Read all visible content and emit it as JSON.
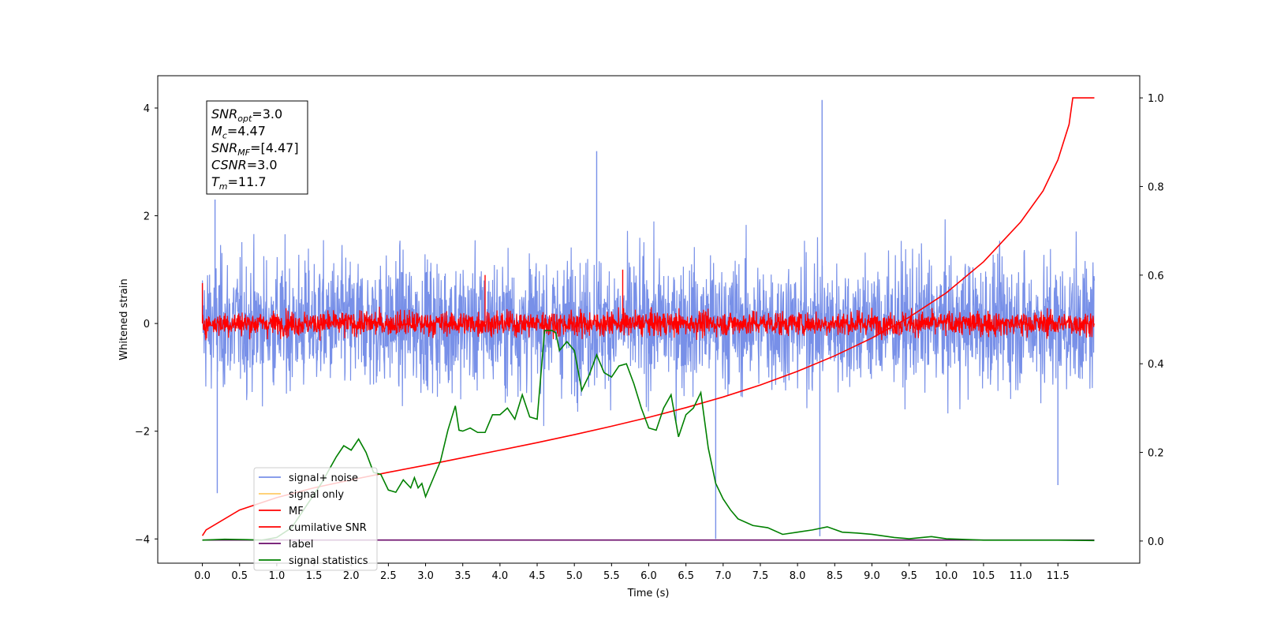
{
  "chart_data": {
    "type": "line",
    "xlabel": "Time (s)",
    "ylabel": "Whitened strain",
    "xlim": [
      -0.6,
      12.6
    ],
    "ylim_left": [
      -4.45,
      4.6
    ],
    "ylim_right": [
      -0.05,
      1.05
    ],
    "x_ticks": [
      "0.0",
      "0.5",
      "1.0",
      "1.5",
      "2.0",
      "2.5",
      "3.0",
      "3.5",
      "4.0",
      "4.5",
      "5.0",
      "5.5",
      "6.0",
      "6.5",
      "7.0",
      "7.5",
      "8.0",
      "8.5",
      "9.0",
      "9.5",
      "10.0",
      "10.5",
      "11.0",
      "11.5"
    ],
    "y_ticks_left": [
      "-4",
      "-2",
      "0",
      "2",
      "4"
    ],
    "y_ticks_right": [
      "0.0",
      "0.2",
      "0.4",
      "0.6",
      "0.8",
      "1.0"
    ],
    "grid": false,
    "legend_position": "lower-left",
    "annotation_box": [
      {
        "name": "SNR",
        "sub": "opt",
        "value": "=3.0"
      },
      {
        "name": "M",
        "sub": "c",
        "value": "=4.47"
      },
      {
        "name": "SNR",
        "sub": "MF",
        "value": "=[4.47]"
      },
      {
        "name": "CSNR",
        "sub": "",
        "value": "=3.0"
      },
      {
        "name": "T",
        "sub": "m",
        "value": "=11.7"
      }
    ],
    "series": [
      {
        "name": "signal+ noise",
        "axis": "left",
        "color": "#7890e8",
        "style": "noise",
        "envelope_range": [
          -1.9,
          2.0
        ],
        "x_range": [
          0.0,
          11.99
        ],
        "notable_spikes": [
          [
            0.17,
            2.3
          ],
          [
            0.2,
            -3.15
          ],
          [
            5.3,
            3.2
          ],
          [
            6.9,
            -4.0
          ],
          [
            8.33,
            4.15
          ],
          [
            8.3,
            -3.95
          ],
          [
            11.5,
            -3.0
          ]
        ]
      },
      {
        "name": "signal only",
        "axis": "left",
        "color": "#ffcc66",
        "style": "flat",
        "value": 0
      },
      {
        "name": "MF",
        "axis": "left",
        "color": "#ff0000",
        "style": "noise",
        "envelope_range": [
          -0.35,
          0.45
        ],
        "x_range": [
          0.0,
          11.99
        ],
        "notable_spikes": [
          [
            0.0,
            0.75
          ],
          [
            3.8,
            0.9
          ],
          [
            5.65,
            1.0
          ]
        ]
      },
      {
        "name": "cumilative SNR",
        "axis": "right",
        "color": "#ff0000",
        "style": "line",
        "x": [
          0.0,
          0.05,
          0.5,
          1.0,
          1.5,
          2.0,
          2.5,
          3.0,
          3.5,
          4.0,
          4.5,
          5.0,
          5.5,
          6.0,
          6.5,
          7.0,
          7.5,
          8.0,
          8.5,
          9.0,
          9.5,
          10.0,
          10.5,
          11.0,
          11.3,
          11.5,
          11.65,
          11.7,
          11.99
        ],
        "y": [
          0.012,
          0.025,
          0.07,
          0.098,
          0.12,
          0.138,
          0.155,
          0.171,
          0.188,
          0.205,
          0.222,
          0.24,
          0.259,
          0.279,
          0.301,
          0.325,
          0.352,
          0.383,
          0.418,
          0.458,
          0.505,
          0.56,
          0.63,
          0.72,
          0.79,
          0.86,
          0.94,
          1.0,
          1.0
        ]
      },
      {
        "name": "label",
        "axis": "left",
        "color": "#6a0a6a",
        "style": "line",
        "x": [
          0.0,
          11.99
        ],
        "y": [
          -4.02,
          -4.02
        ]
      },
      {
        "name": "signal statistics",
        "axis": "right",
        "color": "#008000",
        "style": "line",
        "x": [
          0.0,
          0.3,
          0.6,
          0.8,
          1.0,
          1.2,
          1.4,
          1.6,
          1.8,
          1.9,
          2.0,
          2.1,
          2.2,
          2.3,
          2.4,
          2.5,
          2.6,
          2.7,
          2.8,
          2.85,
          2.9,
          2.95,
          3.0,
          3.05,
          3.1,
          3.2,
          3.3,
          3.4,
          3.45,
          3.5,
          3.6,
          3.7,
          3.8,
          3.9,
          4.0,
          4.1,
          4.2,
          4.3,
          4.4,
          4.5,
          4.6,
          4.7,
          4.75,
          4.8,
          4.9,
          5.0,
          5.1,
          5.2,
          5.3,
          5.4,
          5.5,
          5.6,
          5.7,
          5.8,
          5.9,
          6.0,
          6.1,
          6.2,
          6.3,
          6.4,
          6.5,
          6.6,
          6.7,
          6.8,
          6.9,
          7.0,
          7.1,
          7.2,
          7.4,
          7.6,
          7.8,
          8.0,
          8.2,
          8.4,
          8.6,
          8.8,
          9.0,
          9.3,
          9.5,
          9.8,
          10.0,
          10.5,
          11.0,
          11.5,
          11.99
        ],
        "y": [
          0.002,
          0.004,
          0.003,
          0.002,
          0.008,
          0.03,
          0.08,
          0.13,
          0.19,
          0.215,
          0.205,
          0.23,
          0.2,
          0.155,
          0.15,
          0.115,
          0.11,
          0.138,
          0.12,
          0.143,
          0.12,
          0.13,
          0.1,
          0.12,
          0.14,
          0.18,
          0.25,
          0.305,
          0.25,
          0.248,
          0.255,
          0.245,
          0.245,
          0.285,
          0.285,
          0.3,
          0.275,
          0.33,
          0.28,
          0.275,
          0.475,
          0.475,
          0.47,
          0.43,
          0.45,
          0.43,
          0.34,
          0.375,
          0.42,
          0.38,
          0.37,
          0.395,
          0.4,
          0.355,
          0.3,
          0.255,
          0.25,
          0.3,
          0.33,
          0.235,
          0.285,
          0.3,
          0.335,
          0.21,
          0.13,
          0.095,
          0.07,
          0.05,
          0.035,
          0.03,
          0.015,
          0.02,
          0.025,
          0.032,
          0.02,
          0.018,
          0.015,
          0.008,
          0.005,
          0.01,
          0.005,
          0.002,
          0.002,
          0.002,
          0.001
        ]
      }
    ]
  }
}
